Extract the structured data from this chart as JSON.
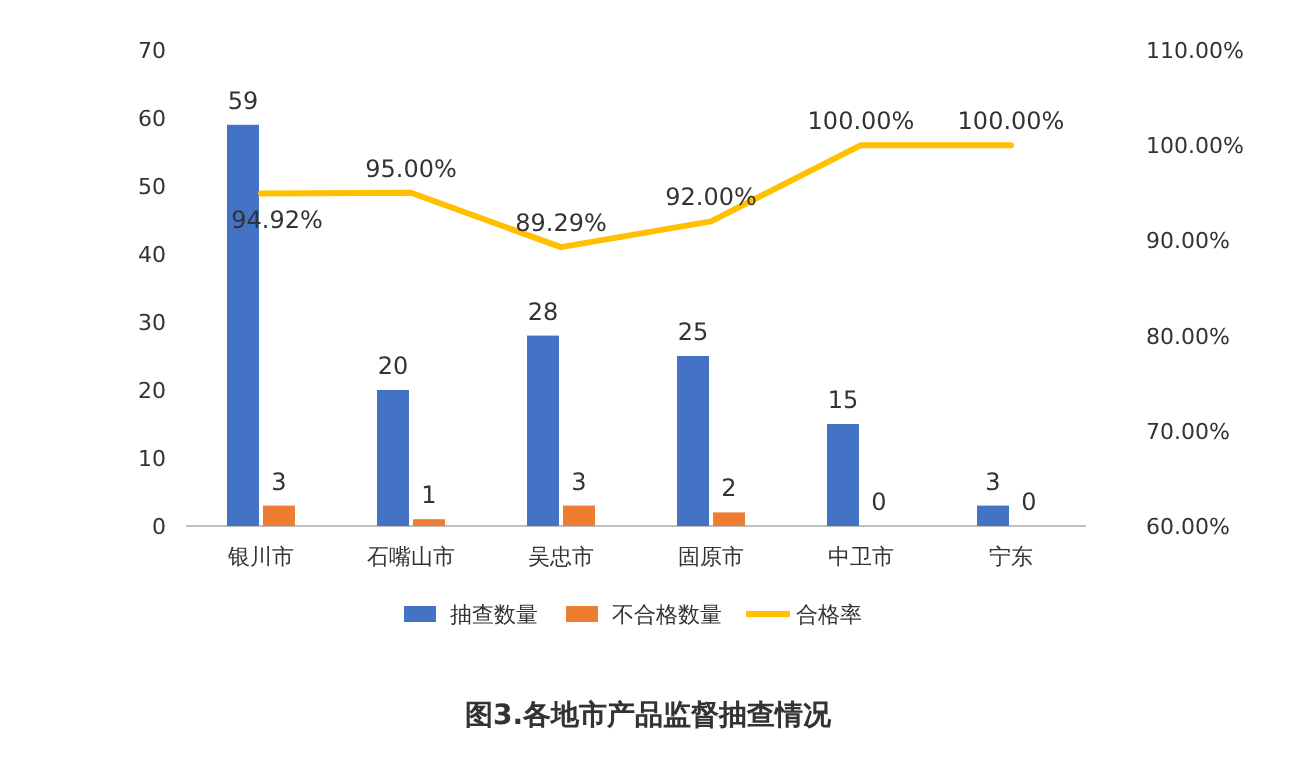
{
  "chart_data": {
    "type": "bar",
    "title": "图3.各地市产品监督抽查情况",
    "categories": [
      "银川市",
      "石嘴山市",
      "吴忠市",
      "固原市",
      "中卫市",
      "宁东"
    ],
    "series": [
      {
        "name": "抽查数量",
        "color": "#4472c4",
        "values": [
          59,
          20,
          28,
          25,
          15,
          3
        ],
        "value_labels": [
          "59",
          "20",
          "28",
          "25",
          "15",
          "3"
        ]
      },
      {
        "name": "不合格数量",
        "color": "#ed7d31",
        "values": [
          3,
          1,
          3,
          2,
          0,
          0
        ],
        "value_labels": [
          "3",
          "1",
          "3",
          "2",
          "0",
          "0"
        ]
      },
      {
        "name": "合格率",
        "type": "line",
        "axis": "y2",
        "color": "#ffc000",
        "values": [
          94.92,
          95.0,
          89.29,
          92.0,
          100.0,
          100.0
        ],
        "value_labels": [
          "94.92%",
          "95.00%",
          "89.29%",
          "92.00%",
          "100.00%",
          "100.00%"
        ]
      }
    ],
    "ylim": [
      0,
      70
    ],
    "yticks": [
      0,
      10,
      20,
      30,
      40,
      50,
      60,
      70
    ],
    "y2lim": [
      60,
      110
    ],
    "y2ticks": [
      {
        "value": 60,
        "label": "60.00%"
      },
      {
        "value": 70,
        "label": "70.00%"
      },
      {
        "value": 80,
        "label": "80.00%"
      },
      {
        "value": 90,
        "label": "90.00%"
      },
      {
        "value": 100,
        "label": "100.00%"
      },
      {
        "value": 110,
        "label": "110.00%"
      }
    ],
    "grid": false,
    "legend": "bottom"
  }
}
